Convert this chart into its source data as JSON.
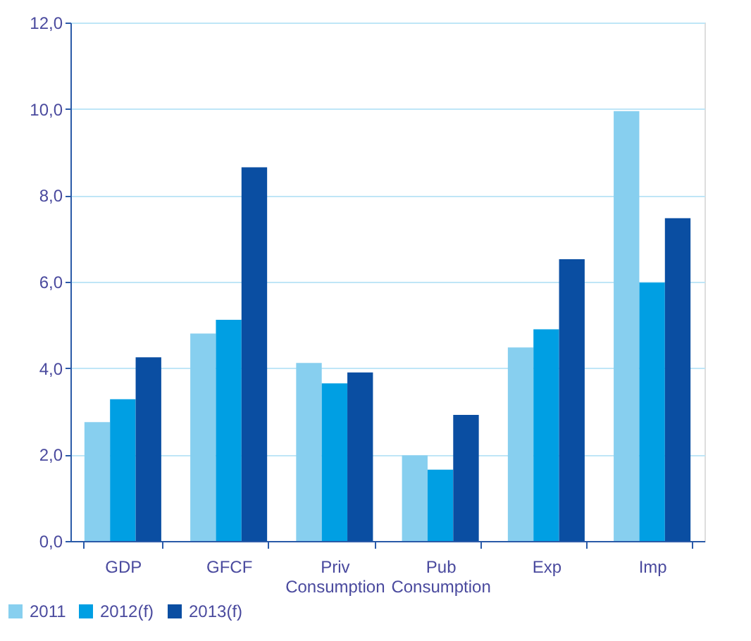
{
  "chart_data": {
    "type": "bar",
    "categories": [
      "GDP",
      "GFCF",
      "Priv Consumption",
      "Pub Consumption",
      "Exp",
      "Imp"
    ],
    "series": [
      {
        "name": "2011",
        "color": "#87cfef",
        "values": [
          2.75,
          4.8,
          4.12,
          1.98,
          4.48,
          9.95
        ]
      },
      {
        "name": "2012(f)",
        "color": "#009fe3",
        "values": [
          3.28,
          5.12,
          3.65,
          1.65,
          4.9,
          5.98
        ]
      },
      {
        "name": "2013(f)",
        "color": "#0a4ea2",
        "values": [
          4.25,
          8.65,
          3.9,
          2.92,
          6.52,
          7.47
        ]
      }
    ],
    "ylim": [
      0,
      12
    ],
    "yticks": [
      {
        "value": 0,
        "label": "0,0"
      },
      {
        "value": 2,
        "label": "2,0"
      },
      {
        "value": 4,
        "label": "4,0"
      },
      {
        "value": 6,
        "label": "6,0"
      },
      {
        "value": 8,
        "label": "8,0"
      },
      {
        "value": 10,
        "label": "10,0"
      },
      {
        "value": 12,
        "label": "12,0"
      }
    ],
    "grid": "y",
    "legend": "bottom left"
  }
}
